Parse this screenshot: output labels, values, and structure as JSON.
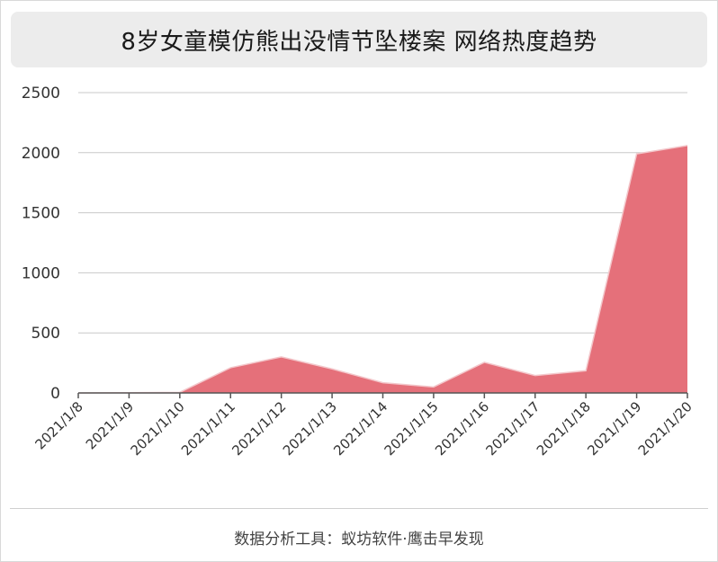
{
  "title": "8岁女童模仿熊出没情节坠楼案 网络热度趋势",
  "footer": "数据分析工具：蚁坊软件·鹰击早发现",
  "colors": {
    "area_fill": "#e5707a",
    "grid": "#c8c8c8",
    "axis": "#555555"
  },
  "chart_data": {
    "type": "area",
    "title": "8岁女童模仿熊出没情节坠楼案 网络热度趋势",
    "xlabel": "",
    "ylabel": "",
    "categories": [
      "2021/1/8",
      "2021/1/9",
      "2021/1/10",
      "2021/1/11",
      "2021/1/12",
      "2021/1/13",
      "2021/1/14",
      "2021/1/15",
      "2021/1/16",
      "2021/1/17",
      "2021/1/18",
      "2021/1/19",
      "2021/1/20"
    ],
    "values": [
      0,
      2,
      5,
      210,
      300,
      200,
      85,
      50,
      255,
      145,
      185,
      1990,
      2060
    ],
    "ylim": [
      0,
      2500
    ],
    "yticks": [
      "0",
      "500",
      "1000",
      "1500",
      "2000",
      "2500"
    ],
    "grid": true,
    "legend": "none"
  }
}
